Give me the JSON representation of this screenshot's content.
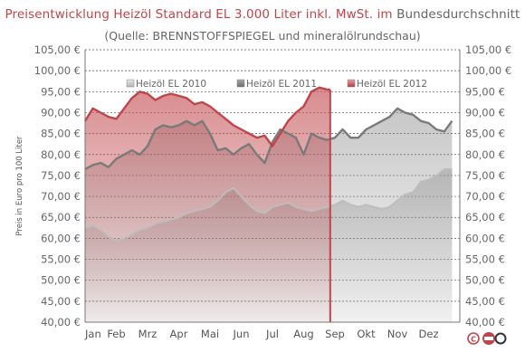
{
  "header": {
    "title_part1": "Preisentwicklung Heizöl Standard EL 3.000 Liter inkl. MwSt. im",
    "title_part2": "Bundesdurchschnitt",
    "subtitle": "(Quelle: BRENNSTOFFSPIEGEL und mineralölrundschau)"
  },
  "colors": {
    "series_2010": "#bdbdbd",
    "series_2011": "#7a7a7a",
    "series_2012": "#c0454a",
    "title_accent": "#c0454a",
    "text": "#666666"
  },
  "icons": [
    "copyright-icon",
    "logo-icon"
  ],
  "chart_data": {
    "type": "area",
    "title": "Preisentwicklung Heizöl Standard EL 3.000 Liter inkl. MwSt. im Bundesdurchschnitt",
    "subtitle": "(Quelle: BRENNSTOFFSPIEGEL und mineralölrundschau)",
    "ylabel": "Preis in Euro pro 100 Liter",
    "xlabel": "",
    "ylim": [
      40,
      105
    ],
    "yticks": [
      40,
      45,
      50,
      55,
      60,
      65,
      70,
      75,
      80,
      85,
      90,
      95,
      100,
      105
    ],
    "ytick_labels": [
      "40,00 €",
      "45,00 €",
      "50,00 €",
      "55,00 €",
      "60,00 €",
      "65,00 €",
      "70,00 €",
      "75,00 €",
      "80,00 €",
      "85,00 €",
      "90,00 €",
      "95,00 €",
      "100,00 €",
      "105,00 €"
    ],
    "grid": true,
    "legend_position": "top",
    "categories": [
      "Jan",
      "Feb",
      "Mrz",
      "Apr",
      "Mai",
      "Jun",
      "Jul",
      "Aug",
      "Sep",
      "Okt",
      "Nov",
      "Dez"
    ],
    "marker": {
      "x": 7.85,
      "label": "Sep"
    },
    "series": [
      {
        "name": "Heizöl EL 2010",
        "x": [
          0.0,
          0.25,
          0.5,
          0.75,
          1.0,
          1.25,
          1.5,
          1.75,
          2.0,
          2.25,
          2.5,
          2.75,
          3.0,
          3.25,
          3.5,
          3.75,
          4.0,
          4.25,
          4.5,
          4.75,
          5.0,
          5.25,
          5.5,
          5.75,
          6.0,
          6.25,
          6.5,
          6.75,
          7.0,
          7.25,
          7.5,
          7.75,
          8.0,
          8.25,
          8.5,
          8.75,
          9.0,
          9.25,
          9.5,
          9.75,
          10.0,
          10.25,
          10.5,
          10.75,
          11.0,
          11.25,
          11.5,
          11.75
        ],
        "values": [
          62.5,
          63,
          62,
          60.5,
          59.5,
          60,
          61,
          62,
          62.5,
          63.5,
          64,
          64.5,
          65,
          66,
          66.5,
          67,
          67.5,
          69,
          71,
          72,
          70,
          68,
          66.5,
          66,
          67.5,
          68,
          68.5,
          67.5,
          67,
          66.5,
          67,
          67.5,
          68,
          69,
          68,
          67.5,
          68,
          67.5,
          67,
          67.5,
          69,
          70.5,
          71,
          73.5,
          74,
          75,
          76.5,
          76.5
        ]
      },
      {
        "name": "Heizöl EL 2011",
        "x": [
          0.0,
          0.25,
          0.5,
          0.75,
          1.0,
          1.25,
          1.5,
          1.75,
          2.0,
          2.25,
          2.5,
          2.75,
          3.0,
          3.25,
          3.5,
          3.75,
          4.0,
          4.25,
          4.5,
          4.75,
          5.0,
          5.25,
          5.5,
          5.75,
          6.0,
          6.25,
          6.5,
          6.75,
          7.0,
          7.25,
          7.5,
          7.75,
          8.0,
          8.25,
          8.5,
          8.75,
          9.0,
          9.25,
          9.5,
          9.75,
          10.0,
          10.25,
          10.5,
          10.75,
          11.0,
          11.25,
          11.5,
          11.75
        ],
        "values": [
          76.5,
          77.5,
          78,
          77,
          79,
          80,
          81,
          80,
          82,
          86,
          87,
          86.5,
          87,
          88,
          87,
          88,
          85,
          81,
          81.5,
          80,
          81.5,
          82.5,
          80,
          78,
          83,
          86,
          85,
          84,
          80,
          85,
          84,
          83.5,
          84,
          86,
          84,
          84,
          86,
          87,
          88,
          89,
          91,
          90,
          89.5,
          88,
          87.5,
          86,
          85.5,
          88
        ]
      },
      {
        "name": "Heizöl EL 2012",
        "x": [
          0.0,
          0.25,
          0.5,
          0.75,
          1.0,
          1.25,
          1.5,
          1.75,
          2.0,
          2.25,
          2.5,
          2.75,
          3.0,
          3.25,
          3.5,
          3.75,
          4.0,
          4.25,
          4.5,
          4.75,
          5.0,
          5.25,
          5.5,
          5.75,
          6.0,
          6.25,
          6.5,
          6.75,
          7.0,
          7.25,
          7.5,
          7.75,
          7.85
        ],
        "values": [
          88,
          91,
          90,
          89,
          88.5,
          91,
          93.5,
          95,
          94.5,
          93,
          94,
          94.5,
          94,
          93.5,
          92,
          92.5,
          91.5,
          90,
          88.5,
          87,
          86,
          85,
          84,
          84.5,
          82,
          85,
          88,
          90,
          91.5,
          95,
          96,
          95.5,
          95.5
        ]
      }
    ]
  }
}
